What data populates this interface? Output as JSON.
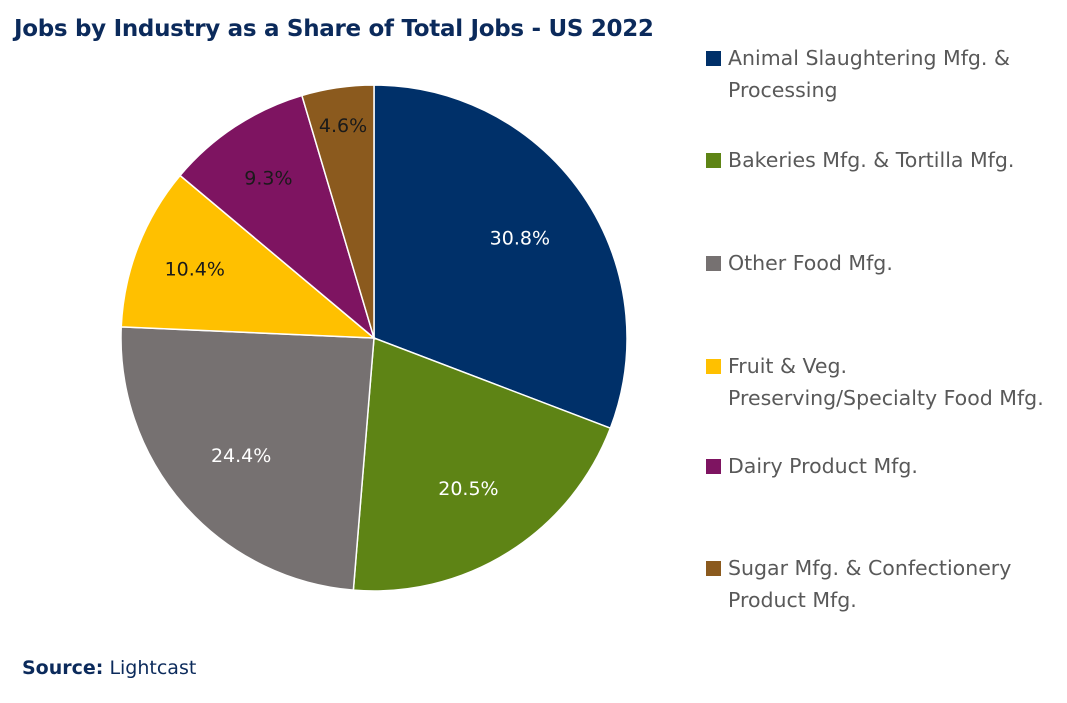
{
  "chart_data": {
    "type": "pie",
    "title": "Jobs by Industry as a Share of Total Jobs - US 2022",
    "start_angle": "top (12 o'clock), clockwise",
    "legend_placement": "right",
    "slices": [
      {
        "label": "Animal Slaughtering Mfg. & Processing",
        "value": 30.8,
        "data_label": "30.8%",
        "color": "#003069",
        "label_color": "#ffffff"
      },
      {
        "label": "Bakeries Mfg. & Tortilla Mfg.",
        "value": 20.5,
        "data_label": "20.5%",
        "color": "#5e8415",
        "label_color": "#ffffff"
      },
      {
        "label": "Other Food Mfg.",
        "value": 24.4,
        "data_label": "24.4%",
        "color": "#767171",
        "label_color": "#ffffff"
      },
      {
        "label": "Fruit & Veg. Preserving/Specialty Food Mfg.",
        "value": 10.4,
        "data_label": "10.4%",
        "color": "#ffc000",
        "label_color": "#1a1a1a"
      },
      {
        "label": "Dairy Product Mfg.",
        "value": 9.3,
        "data_label": "9.3%",
        "color": "#7e1461",
        "label_color": "#1a1a1a"
      },
      {
        "label": "Sugar Mfg. & Confectionery Product Mfg.",
        "value": 4.6,
        "data_label": "4.6%",
        "color": "#8b5a1e",
        "label_color": "#1a1a1a"
      }
    ]
  },
  "source": {
    "label": "Source:",
    "value": "Lightcast"
  }
}
